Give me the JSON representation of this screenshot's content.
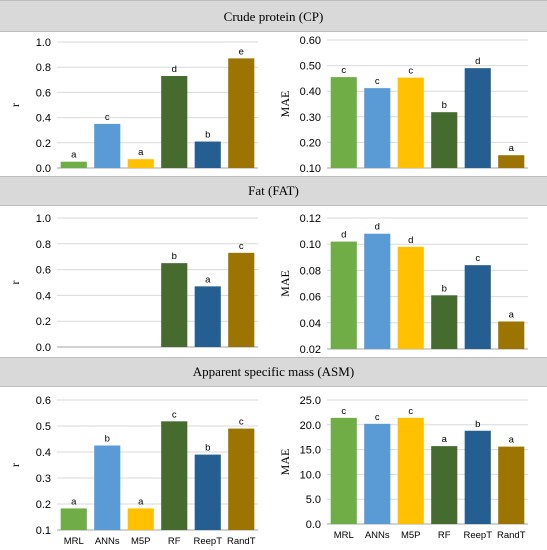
{
  "panels": [
    {
      "title": "Crude protein (CP)"
    },
    {
      "title": "Fat (FAT)"
    },
    {
      "title": "Apparent specific mass (ASM)"
    }
  ],
  "colors": {
    "MRL": "#70ad47",
    "ANNs": "#5b9bd5",
    "M5P": "#ffc000",
    "RF": "#456b2e",
    "ReepT": "#255e91",
    "RandT": "#9c7400",
    "grid": "#d9d9d9",
    "band": "#d9d9d9"
  },
  "chart_data": [
    {
      "type": "bar",
      "panel": "Crude protein (CP)",
      "ylabel": "r",
      "categories": [
        "MRL",
        "ANNs",
        "M5P",
        "RF",
        "ReepT",
        "RandT"
      ],
      "values": [
        0.05,
        0.35,
        0.07,
        0.73,
        0.21,
        0.87
      ],
      "letters": [
        "a",
        "c",
        "a",
        "d",
        "b",
        "e"
      ],
      "ylim": [
        0,
        1.0
      ],
      "ticks": [
        "0.0",
        "0.2",
        "0.4",
        "0.6",
        "0.8",
        "1.0"
      ],
      "grid": true
    },
    {
      "type": "bar",
      "panel": "Crude protein (CP)",
      "ylabel": "MAE",
      "categories": [
        "MRL",
        "ANNs",
        "M5P",
        "RF",
        "ReepT",
        "RandT"
      ],
      "values": [
        0.455,
        0.412,
        0.453,
        0.318,
        0.49,
        0.15
      ],
      "letters": [
        "c",
        "c",
        "c",
        "b",
        "d",
        "a"
      ],
      "ylim": [
        0.1,
        0.6
      ],
      "ticks": [
        "0.10",
        "0.20",
        "0.30",
        "0.40",
        "0.50",
        "0.60"
      ],
      "grid": true
    },
    {
      "type": "bar",
      "panel": "Fat (FAT)",
      "ylabel": "r",
      "categories": [
        "MRL",
        "ANNs",
        "M5P",
        "RF",
        "ReepT",
        "RandT"
      ],
      "values": [
        null,
        null,
        null,
        0.65,
        0.47,
        0.73
      ],
      "letters": [
        "",
        "",
        "",
        "b",
        "a",
        "c"
      ],
      "ylim": [
        0,
        1.0
      ],
      "ticks": [
        "0.0",
        "0.2",
        "0.4",
        "0.6",
        "0.8",
        "1.0"
      ],
      "grid": true
    },
    {
      "type": "bar",
      "panel": "Fat (FAT)",
      "ylabel": "MAE",
      "categories": [
        "MRL",
        "ANNs",
        "M5P",
        "RF",
        "ReepT",
        "RandT"
      ],
      "values": [
        0.102,
        0.108,
        0.098,
        0.061,
        0.084,
        0.041
      ],
      "letters": [
        "d",
        "d",
        "d",
        "b",
        "c",
        "a"
      ],
      "ylim": [
        0.02,
        0.12
      ],
      "ticks": [
        "0.02",
        "0.04",
        "0.06",
        "0.08",
        "0.10",
        "0.12"
      ],
      "grid": true
    },
    {
      "type": "bar",
      "panel": "Apparent specific mass (ASM)",
      "ylabel": "r",
      "categories": [
        "MRL",
        "ANNs",
        "M5P",
        "RF",
        "ReepT",
        "RandT"
      ],
      "values": [
        0.183,
        0.425,
        0.183,
        0.518,
        0.39,
        0.49
      ],
      "letters": [
        "a",
        "b",
        "a",
        "c",
        "b",
        "c"
      ],
      "ylim": [
        0.1,
        0.6
      ],
      "ticks": [
        "0.1",
        "0.2",
        "0.3",
        "0.4",
        "0.5",
        "0.6"
      ],
      "grid": true
    },
    {
      "type": "bar",
      "panel": "Apparent specific mass (ASM)",
      "ylabel": "MAE",
      "categories": [
        "MRL",
        "ANNs",
        "M5P",
        "RF",
        "ReepT",
        "RandT"
      ],
      "values": [
        21.4,
        20.2,
        21.4,
        15.7,
        18.8,
        15.6
      ],
      "letters": [
        "c",
        "c",
        "c",
        "a",
        "b",
        "a"
      ],
      "ylim": [
        0,
        25
      ],
      "ticks": [
        "0.0",
        "5.0",
        "10.0",
        "15.0",
        "20.0",
        "25.0"
      ],
      "grid": true
    }
  ]
}
